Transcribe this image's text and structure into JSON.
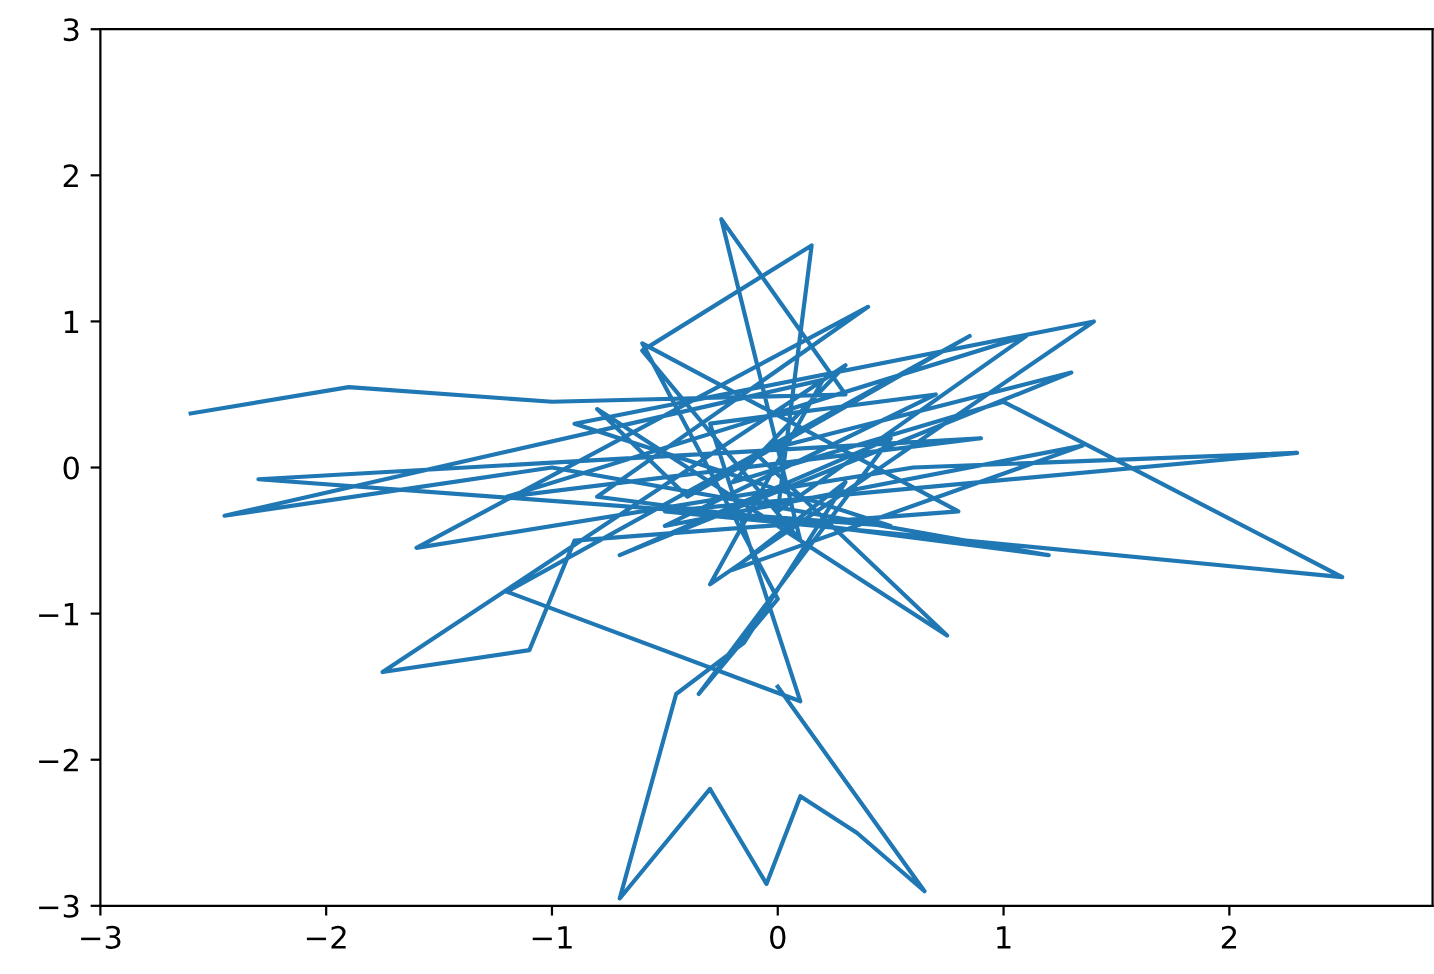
{
  "chart_data": {
    "type": "line",
    "x": [
      -2.6,
      -1.9,
      -1.0,
      0.3,
      -0.25,
      0.1,
      -0.6,
      0.15,
      0.0,
      1.1,
      -1.2,
      0.9,
      -2.3,
      0.5,
      -0.9,
      1.4,
      -0.3,
      0.2,
      -2.45,
      -1.0,
      1.2,
      -0.8,
      0.4,
      -1.6,
      0.6,
      2.3,
      -0.5,
      2.5,
      1.0,
      -0.2,
      0.3,
      -1.75,
      -1.1,
      -0.9,
      0.8,
      -0.6,
      0.0,
      -0.35,
      0.5,
      -0.7,
      1.3,
      -0.1,
      0.75,
      -0.8,
      -0.4,
      0.85,
      -1.2,
      0.1,
      -0.3,
      0.7,
      -0.5,
      1.35,
      -0.2,
      0.3,
      -0.15,
      -0.45,
      -0.7,
      -0.3,
      -0.05,
      0.1,
      0.35,
      0.65,
      0.0
    ],
    "series": [
      {
        "color": "#1f77b4",
        "values": [
          0.37,
          0.55,
          0.45,
          0.5,
          1.7,
          -0.5,
          0.8,
          1.52,
          -0.3,
          0.9,
          -0.2,
          0.2,
          -0.08,
          -0.4,
          0.3,
          1.0,
          -0.8,
          0.6,
          -0.33,
          0.0,
          -0.6,
          -0.2,
          1.1,
          -0.55,
          0.0,
          0.1,
          -0.3,
          -0.75,
          0.45,
          -0.1,
          0.7,
          -1.4,
          -1.25,
          -0.5,
          -0.3,
          0.85,
          -0.9,
          -1.55,
          0.2,
          -0.6,
          0.65,
          0.1,
          -1.15,
          0.4,
          -0.2,
          0.9,
          -0.85,
          -1.6,
          0.3,
          0.5,
          -0.4,
          0.15,
          -0.7,
          -0.1,
          -1.2,
          -1.55,
          -2.95,
          -2.2,
          -2.85,
          -2.25,
          -2.5,
          -2.9,
          -1.5
        ]
      }
    ],
    "xlim": [
      -3,
      2.9
    ],
    "ylim": [
      -3,
      3
    ],
    "xticks": [
      {
        "value": -3,
        "label": "−3"
      },
      {
        "value": -2,
        "label": "−2"
      },
      {
        "value": -1,
        "label": "−1"
      },
      0,
      1,
      2
    ],
    "yticks": [
      {
        "value": -3,
        "label": "−3"
      },
      {
        "value": -2,
        "label": "−2"
      },
      {
        "value": -1,
        "label": "−1"
      },
      0,
      1,
      2,
      3
    ]
  }
}
